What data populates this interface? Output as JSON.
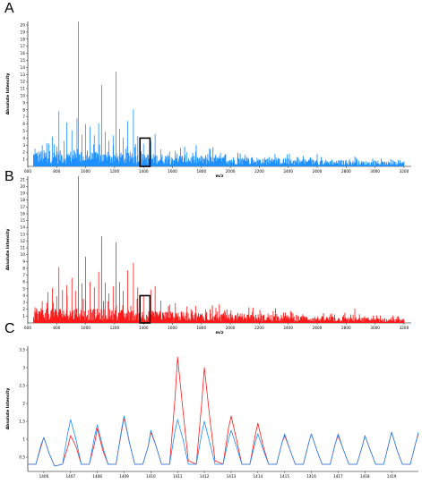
{
  "panels": {
    "a": "A",
    "b": "B",
    "c": "C"
  },
  "colors": {
    "blue": "#1e90ff",
    "red": "#ff1a1a",
    "purple": "#7060a8",
    "black": "#000000"
  },
  "chart_data": [
    {
      "id": "A",
      "type": "line",
      "xlabel": "m/z",
      "ylabel": "Absolute Intensity",
      "xlim": [
        600,
        3250
      ],
      "ylim": [
        0,
        20.5
      ],
      "xticks": [
        600,
        800,
        1000,
        1200,
        1400,
        1600,
        1800,
        2000,
        2200,
        2400,
        2600,
        2800,
        3000,
        3200
      ],
      "yticks": [
        1,
        2,
        3,
        4,
        5,
        6,
        7,
        8,
        9,
        10,
        11,
        12,
        13,
        14,
        15,
        16,
        17,
        18,
        19,
        20
      ],
      "highlight_range": {
        "x": [
          1400,
          1420
        ],
        "y": [
          0,
          4
        ]
      },
      "series": [
        {
          "color": "blue",
          "peaks": [
            [
              650,
              2.5
            ],
            [
              700,
              3.0
            ],
            [
              745,
              3.2
            ],
            [
              770,
              4.2
            ],
            [
              800,
              2.8
            ],
            [
              815,
              7.8
            ],
            [
              850,
              3.6
            ],
            [
              870,
              6.2
            ],
            [
              905,
              5.1
            ],
            [
              940,
              6.8
            ],
            [
              950,
              20.5
            ],
            [
              975,
              4.5
            ],
            [
              1000,
              6.0
            ],
            [
              1030,
              5.6
            ],
            [
              1060,
              4.4
            ],
            [
              1090,
              6.1
            ],
            [
              1110,
              11.5
            ],
            [
              1135,
              4.9
            ],
            [
              1160,
              3.6
            ],
            [
              1190,
              4.4
            ],
            [
              1210,
              13.4
            ],
            [
              1235,
              5.3
            ],
            [
              1260,
              4.1
            ],
            [
              1290,
              6.4
            ],
            [
              1330,
              8.1
            ],
            [
              1360,
              4.3
            ],
            [
              1400,
              3.2
            ],
            [
              1450,
              3.6
            ],
            [
              1480,
              4.6
            ],
            [
              1520,
              2.4
            ],
            [
              1580,
              2.1
            ],
            [
              1620,
              2.2
            ],
            [
              1700,
              2.0
            ],
            [
              1760,
              2.1
            ],
            [
              1830,
              1.6
            ],
            [
              1900,
              1.7
            ],
            [
              1960,
              1.5
            ],
            [
              2050,
              1.3
            ],
            [
              2150,
              1.3
            ],
            [
              2260,
              1.1
            ],
            [
              2380,
              1.2
            ],
            [
              2500,
              1.0
            ],
            [
              2700,
              1.0
            ],
            [
              2860,
              1.4
            ]
          ]
        }
      ]
    },
    {
      "id": "B",
      "type": "line",
      "xlabel": "m/z",
      "ylabel": "Absolute Intensity",
      "xlim": [
        600,
        3250
      ],
      "ylim": [
        0,
        21.5
      ],
      "xticks": [
        600,
        800,
        1000,
        1200,
        1400,
        1600,
        1800,
        2000,
        2200,
        2400,
        2600,
        2800,
        3000,
        3200
      ],
      "yticks": [
        1,
        2,
        3,
        4,
        5,
        6,
        7,
        8,
        9,
        10,
        11,
        12,
        13,
        14,
        15,
        16,
        17,
        18,
        19,
        20,
        21
      ],
      "highlight_range": {
        "x": [
          1400,
          1420
        ],
        "y": [
          0,
          4
        ]
      },
      "series": [
        {
          "color": "red",
          "peaks": [
            [
              650,
              2.3
            ],
            [
              700,
              3.2
            ],
            [
              740,
              4.5
            ],
            [
              770,
              5.1
            ],
            [
              800,
              3.9
            ],
            [
              815,
              8.2
            ],
            [
              840,
              4.8
            ],
            [
              870,
              5.5
            ],
            [
              905,
              6.6
            ],
            [
              930,
              4.7
            ],
            [
              950,
              21.5
            ],
            [
              975,
              5.8
            ],
            [
              1000,
              9.7
            ],
            [
              1030,
              6.0
            ],
            [
              1060,
              5.2
            ],
            [
              1090,
              7.5
            ],
            [
              1110,
              12.7
            ],
            [
              1135,
              5.9
            ],
            [
              1160,
              4.3
            ],
            [
              1190,
              5.4
            ],
            [
              1210,
              11.8
            ],
            [
              1235,
              6.0
            ],
            [
              1260,
              4.7
            ],
            [
              1290,
              7.7
            ],
            [
              1330,
              8.8
            ],
            [
              1360,
              5.2
            ],
            [
              1400,
              4.1
            ],
            [
              1450,
              4.9
            ],
            [
              1480,
              5.4
            ],
            [
              1520,
              3.3
            ],
            [
              1580,
              2.7
            ],
            [
              1620,
              2.9
            ],
            [
              1700,
              2.4
            ],
            [
              1760,
              2.5
            ],
            [
              1830,
              2.0
            ],
            [
              1900,
              2.2
            ],
            [
              1960,
              1.8
            ],
            [
              2050,
              1.5
            ],
            [
              2150,
              1.6
            ],
            [
              2260,
              1.4
            ],
            [
              2380,
              1.5
            ],
            [
              2500,
              1.3
            ],
            [
              2700,
              1.4
            ],
            [
              2860,
              2.1
            ]
          ]
        }
      ]
    },
    {
      "id": "C",
      "type": "line",
      "xlabel": "",
      "ylabel": "Absolute Intensity",
      "xlim": [
        1405.4,
        1420.0
      ],
      "ylim": [
        0.1,
        3.6
      ],
      "xticks": [
        1406,
        1407,
        1408,
        1409,
        1410,
        1411,
        1412,
        1413,
        1414,
        1415,
        1416,
        1417,
        1418,
        1419
      ],
      "yticks": [
        0.5,
        1,
        1.5,
        2,
        2.5,
        3,
        3.5
      ],
      "series": [
        {
          "color": "red",
          "x": [
            1405.4,
            1405.7,
            1405.9,
            1406.0,
            1406.2,
            1406.4,
            1406.7,
            1406.9,
            1407.0,
            1407.2,
            1407.4,
            1407.7,
            1407.9,
            1408.0,
            1408.2,
            1408.4,
            1408.7,
            1408.9,
            1409.0,
            1409.2,
            1409.4,
            1409.7,
            1409.9,
            1410.0,
            1410.2,
            1410.4,
            1410.7,
            1410.9,
            1411.0,
            1411.2,
            1411.4,
            1411.7,
            1411.9,
            1412.0,
            1412.2,
            1412.4,
            1412.7,
            1412.9,
            1413.0,
            1413.2,
            1413.4,
            1413.7,
            1413.9,
            1414.0,
            1414.2,
            1414.4,
            1414.7,
            1414.9,
            1415.0,
            1415.2,
            1415.4,
            1415.7,
            1415.9,
            1416.0,
            1416.2,
            1416.4,
            1416.7,
            1416.9,
            1417.0,
            1417.2,
            1417.4,
            1417.7,
            1417.9,
            1418.0,
            1418.2,
            1418.4,
            1418.7,
            1418.9,
            1419.0,
            1419.2,
            1419.4,
            1419.7,
            1419.9,
            1420.0
          ],
          "y": [
            0.3,
            0.3,
            0.8,
            1.05,
            0.6,
            0.25,
            0.3,
            0.8,
            1.1,
            0.8,
            0.3,
            0.3,
            0.9,
            1.3,
            0.7,
            0.3,
            0.3,
            1.2,
            1.6,
            0.9,
            0.3,
            0.3,
            0.8,
            1.2,
            0.8,
            0.3,
            0.3,
            2.1,
            3.3,
            1.8,
            0.4,
            0.3,
            2.0,
            3.0,
            1.6,
            0.4,
            0.3,
            1.3,
            1.65,
            1.0,
            0.3,
            0.3,
            1.1,
            1.45,
            0.8,
            0.3,
            0.3,
            0.9,
            1.1,
            0.7,
            0.3,
            0.3,
            0.9,
            1.15,
            0.7,
            0.3,
            0.3,
            0.9,
            1.1,
            0.7,
            0.3,
            0.3,
            0.8,
            1.1,
            0.7,
            0.3,
            0.3,
            0.9,
            1.2,
            0.7,
            0.3,
            0.3,
            0.9,
            1.15
          ]
        },
        {
          "color": "blue",
          "x": [
            1405.4,
            1405.7,
            1405.9,
            1406.0,
            1406.2,
            1406.4,
            1406.7,
            1406.9,
            1407.0,
            1407.2,
            1407.4,
            1407.7,
            1407.9,
            1408.0,
            1408.2,
            1408.4,
            1408.7,
            1408.9,
            1409.0,
            1409.2,
            1409.4,
            1409.7,
            1409.9,
            1410.0,
            1410.2,
            1410.4,
            1410.7,
            1410.9,
            1411.0,
            1411.2,
            1411.4,
            1411.7,
            1411.9,
            1412.0,
            1412.2,
            1412.4,
            1412.7,
            1412.9,
            1413.0,
            1413.2,
            1413.4,
            1413.7,
            1413.9,
            1414.0,
            1414.2,
            1414.4,
            1414.7,
            1414.9,
            1415.0,
            1415.2,
            1415.4,
            1415.7,
            1415.9,
            1416.0,
            1416.2,
            1416.4,
            1416.7,
            1416.9,
            1417.0,
            1417.2,
            1417.4,
            1417.7,
            1417.9,
            1418.0,
            1418.2,
            1418.4,
            1418.7,
            1418.9,
            1419.0,
            1419.2,
            1419.4,
            1419.7,
            1419.9,
            1420.0
          ],
          "y": [
            0.3,
            0.3,
            0.85,
            1.05,
            0.6,
            0.25,
            0.3,
            1.2,
            1.55,
            1.0,
            0.3,
            0.3,
            1.1,
            1.4,
            0.8,
            0.3,
            0.3,
            1.25,
            1.65,
            0.9,
            0.3,
            0.3,
            0.8,
            1.25,
            0.8,
            0.3,
            0.3,
            1.2,
            1.55,
            1.0,
            0.3,
            0.3,
            1.15,
            1.5,
            0.9,
            0.3,
            0.3,
            1.0,
            1.25,
            0.8,
            0.3,
            0.3,
            0.9,
            1.15,
            0.7,
            0.3,
            0.3,
            0.9,
            1.15,
            0.7,
            0.3,
            0.3,
            0.9,
            1.15,
            0.7,
            0.3,
            0.3,
            0.9,
            1.15,
            0.7,
            0.3,
            0.3,
            0.8,
            1.1,
            0.7,
            0.3,
            0.3,
            0.9,
            1.2,
            0.7,
            0.3,
            0.3,
            0.9,
            1.2
          ]
        }
      ]
    }
  ]
}
